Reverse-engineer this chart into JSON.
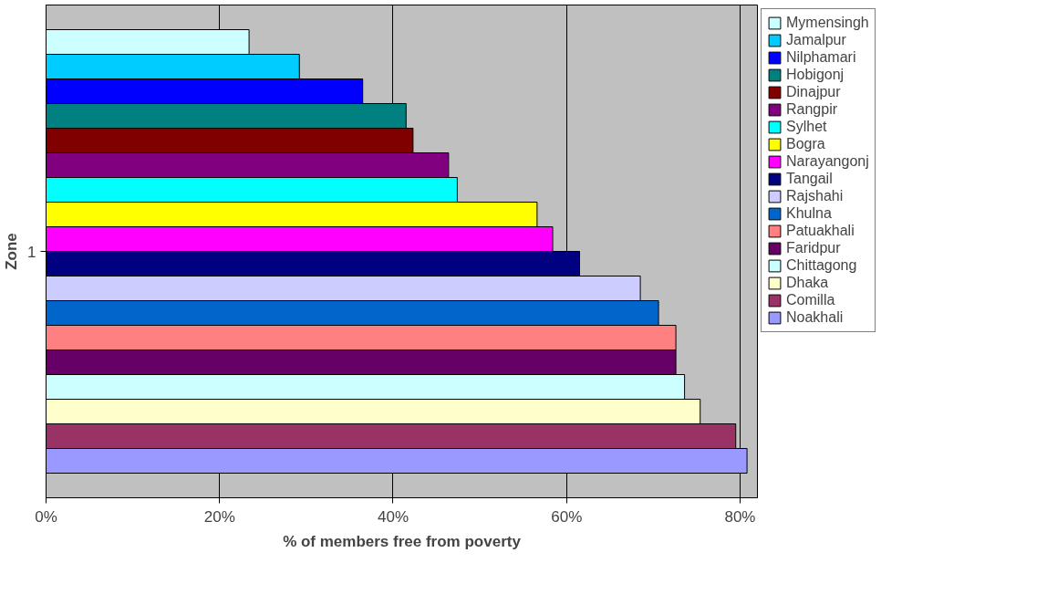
{
  "chart_data": {
    "type": "bar",
    "orientation": "horizontal",
    "ylabel": "Zone",
    "xlabel": "% of members free from poverty",
    "categories": [
      "1"
    ],
    "series": [
      {
        "name": "Mymensingh",
        "color": "#ccffff",
        "values": [
          23.4
        ]
      },
      {
        "name": "Jamalpur",
        "color": "#00ccff",
        "values": [
          29.2
        ]
      },
      {
        "name": "Nilphamari",
        "color": "#0000ff",
        "values": [
          36.5
        ]
      },
      {
        "name": "Hobigonj",
        "color": "#008080",
        "values": [
          41.5
        ]
      },
      {
        "name": "Dinajpur",
        "color": "#800000",
        "values": [
          42.3
        ]
      },
      {
        "name": "Rangpir",
        "color": "#800080",
        "values": [
          46.4
        ]
      },
      {
        "name": "Sylhet",
        "color": "#00ffff",
        "values": [
          47.4
        ]
      },
      {
        "name": "Bogra",
        "color": "#ffff00",
        "values": [
          56.6
        ]
      },
      {
        "name": "Narayangonj",
        "color": "#ff00ff",
        "values": [
          58.4
        ]
      },
      {
        "name": "Tangail",
        "color": "#000080",
        "values": [
          61.5
        ]
      },
      {
        "name": "Rajshahi",
        "color": "#ccccff",
        "values": [
          68.5
        ]
      },
      {
        "name": "Khulna",
        "color": "#0066cc",
        "values": [
          70.6
        ]
      },
      {
        "name": "Patuakhali",
        "color": "#ff8080",
        "values": [
          72.6
        ]
      },
      {
        "name": "Faridpur",
        "color": "#660066",
        "values": [
          72.6
        ]
      },
      {
        "name": "Chittagong",
        "color": "#ccffff",
        "values": [
          73.6
        ]
      },
      {
        "name": "Dhaka",
        "color": "#ffffcc",
        "values": [
          75.4
        ]
      },
      {
        "name": "Comilla",
        "color": "#993366",
        "values": [
          79.5
        ]
      },
      {
        "name": "Noakhali",
        "color": "#9999ff",
        "values": [
          80.8
        ]
      }
    ],
    "xlim": [
      0,
      82
    ],
    "xticks": [
      {
        "value": 0,
        "label": "0%"
      },
      {
        "value": 20,
        "label": "20%"
      },
      {
        "value": 40,
        "label": "40%"
      },
      {
        "value": 60,
        "label": "60%"
      },
      {
        "value": 80,
        "label": "80%"
      }
    ],
    "grid": "x",
    "legend": "right"
  }
}
